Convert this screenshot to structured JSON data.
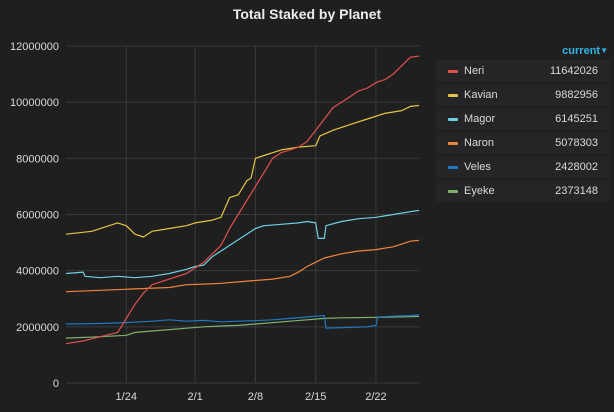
{
  "panel": {
    "title": "Total Staked by Planet"
  },
  "legend": {
    "header": "current",
    "items": [
      {
        "name": "Neri",
        "value": "11642026",
        "color": "#e0514e"
      },
      {
        "name": "Kavian",
        "value": "9882956",
        "color": "#e5c543"
      },
      {
        "name": "Magor",
        "value": "6145251",
        "color": "#6ed0e0"
      },
      {
        "name": "Naron",
        "value": "5078303",
        "color": "#ef843c"
      },
      {
        "name": "Veles",
        "value": "2428002",
        "color": "#1f78c1"
      },
      {
        "name": "Eyeke",
        "value": "2373148",
        "color": "#7eb26d"
      }
    ]
  },
  "chart_data": {
    "type": "line",
    "title": "Total Staked by Planet",
    "x_domain": [
      "Jan 17",
      "Feb 28"
    ],
    "xticks": [
      {
        "label": "1/24",
        "day": 7
      },
      {
        "label": "2/1",
        "day": 15
      },
      {
        "label": "2/8",
        "day": 22
      },
      {
        "label": "2/15",
        "day": 29
      },
      {
        "label": "2/22",
        "day": 36
      }
    ],
    "ylim": [
      0,
      12000000
    ],
    "yticks": [
      "0",
      "2000000",
      "4000000",
      "6000000",
      "8000000",
      "10000000",
      "12000000"
    ],
    "grid": true,
    "legend_position": "right",
    "series": [
      {
        "name": "Neri",
        "color": "#e0514e",
        "x": [
          0,
          2,
          4,
          6,
          7,
          8,
          9,
          10,
          12,
          14,
          16,
          18,
          19,
          20,
          21,
          22,
          23,
          24,
          25,
          26,
          27,
          28,
          29,
          30,
          31,
          32,
          33,
          34,
          35,
          36,
          37,
          38,
          39,
          40,
          41
        ],
        "y": [
          1400000,
          1500000,
          1650000,
          1800000,
          2300000,
          2800000,
          3200000,
          3500000,
          3700000,
          3900000,
          4300000,
          4900000,
          5500000,
          6000000,
          6500000,
          7000000,
          7500000,
          8000000,
          8200000,
          8300000,
          8400000,
          8600000,
          9000000,
          9400000,
          9800000,
          10000000,
          10200000,
          10400000,
          10500000,
          10700000,
          10800000,
          11000000,
          11300000,
          11600000,
          11642026
        ]
      },
      {
        "name": "Kavian",
        "color": "#e5c543",
        "x": [
          0,
          3,
          5,
          6,
          7,
          8,
          9,
          10,
          12,
          14,
          15,
          17,
          18,
          19,
          20,
          21,
          21.5,
          22,
          23,
          24,
          25,
          27,
          29,
          29.5,
          31,
          33,
          35,
          37,
          39,
          40,
          41
        ],
        "y": [
          5300000,
          5400000,
          5600000,
          5700000,
          5600000,
          5300000,
          5200000,
          5400000,
          5500000,
          5600000,
          5700000,
          5800000,
          5900000,
          6600000,
          6700000,
          7200000,
          7300000,
          8000000,
          8100000,
          8200000,
          8300000,
          8400000,
          8450000,
          8800000,
          9000000,
          9200000,
          9400000,
          9600000,
          9700000,
          9850000,
          9882956
        ]
      },
      {
        "name": "Magor",
        "color": "#6ed0e0",
        "x": [
          0,
          2,
          2.2,
          4,
          6,
          8,
          10,
          12,
          14,
          15,
          16,
          17,
          18,
          19,
          20,
          21,
          22,
          23,
          25,
          27,
          28,
          29,
          29.3,
          30,
          30.2,
          32,
          34,
          36,
          38,
          40,
          41
        ],
        "y": [
          3900000,
          3950000,
          3800000,
          3750000,
          3800000,
          3750000,
          3800000,
          3900000,
          4050000,
          4150000,
          4200000,
          4500000,
          4700000,
          4900000,
          5100000,
          5300000,
          5500000,
          5600000,
          5650000,
          5700000,
          5750000,
          5700000,
          5150000,
          5150000,
          5600000,
          5750000,
          5850000,
          5900000,
          6000000,
          6100000,
          6145251
        ]
      },
      {
        "name": "Naron",
        "color": "#ef843c",
        "x": [
          0,
          4,
          8,
          12,
          14,
          16,
          18,
          20,
          22,
          24,
          26,
          27,
          28,
          29,
          30,
          32,
          34,
          36,
          38,
          40,
          41
        ],
        "y": [
          3250000,
          3300000,
          3350000,
          3400000,
          3500000,
          3520000,
          3550000,
          3600000,
          3650000,
          3700000,
          3800000,
          3950000,
          4150000,
          4300000,
          4450000,
          4600000,
          4700000,
          4750000,
          4850000,
          5050000,
          5078303
        ]
      },
      {
        "name": "Veles",
        "color": "#1f78c1",
        "x": [
          0,
          4,
          7,
          10,
          12,
          14,
          16,
          18,
          20,
          22,
          24,
          26,
          28,
          29,
          30,
          30.2,
          33,
          35,
          36,
          36.2,
          38,
          40,
          41
        ],
        "y": [
          2100000,
          2120000,
          2150000,
          2200000,
          2250000,
          2200000,
          2230000,
          2180000,
          2200000,
          2220000,
          2250000,
          2300000,
          2350000,
          2380000,
          2400000,
          1950000,
          1980000,
          2000000,
          2050000,
          2350000,
          2380000,
          2400000,
          2428002
        ]
      },
      {
        "name": "Eyeke",
        "color": "#7eb26d",
        "x": [
          0,
          4,
          7,
          8,
          10,
          12,
          14,
          16,
          18,
          20,
          22,
          24,
          26,
          28,
          30,
          32,
          34,
          36,
          38,
          40,
          41
        ],
        "y": [
          1600000,
          1650000,
          1700000,
          1800000,
          1850000,
          1900000,
          1950000,
          2000000,
          2030000,
          2050000,
          2100000,
          2150000,
          2200000,
          2250000,
          2300000,
          2320000,
          2330000,
          2340000,
          2350000,
          2360000,
          2373148
        ]
      }
    ]
  }
}
